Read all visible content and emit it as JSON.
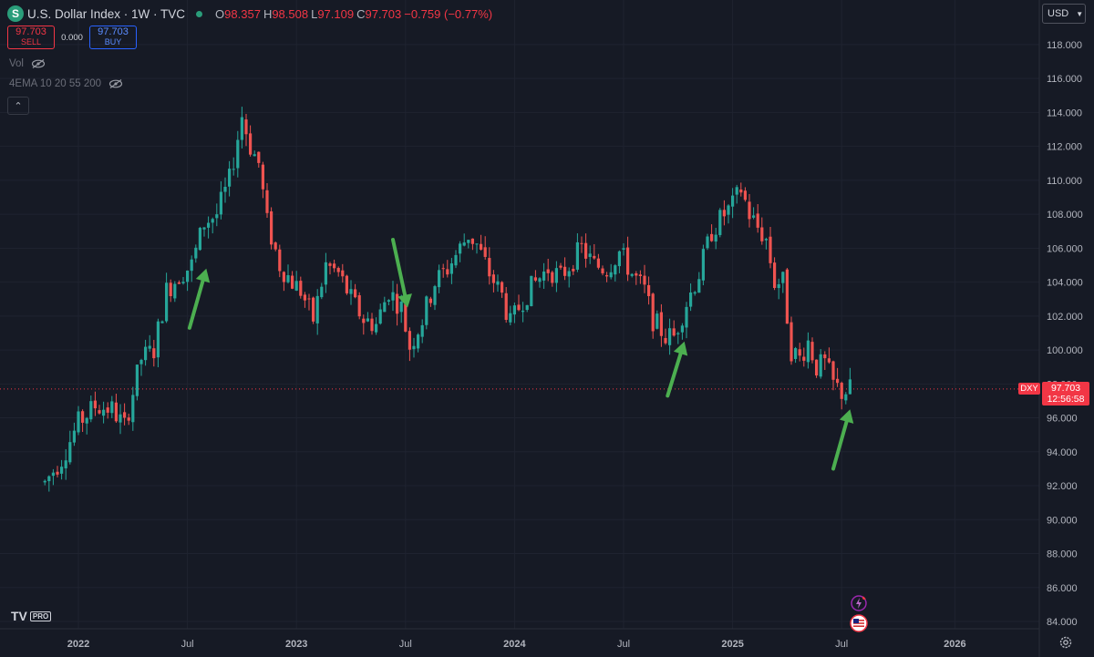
{
  "header": {
    "symbol_logo": "S",
    "title": "U.S. Dollar Index · 1W · TVC",
    "ohlc": [
      {
        "k": "O",
        "v": "98.357"
      },
      {
        "k": "H",
        "v": "98.508"
      },
      {
        "k": "L",
        "v": "97.109"
      },
      {
        "k": "C",
        "v": "97.703"
      },
      {
        "k": "",
        "v": "−0.759 (−0.77%)"
      }
    ]
  },
  "trade": {
    "sell_price": "97.703",
    "sell_label": "SELL",
    "spread": "0.000",
    "buy_price": "97.703",
    "buy_label": "BUY"
  },
  "indicators": [
    {
      "label": "Vol"
    },
    {
      "label": "4EMA 10 20 55 200"
    }
  ],
  "currency_button": "USD",
  "price_tag": {
    "symbol": "DXY",
    "price": "97.703",
    "countdown": "12:56:58"
  },
  "branding": {
    "logo": "TV",
    "badge": "PRO"
  },
  "icons": {
    "eye_off": "eye-off-icon",
    "settings": "gear-icon",
    "events": [
      "lightning-event-icon",
      "us-flag-event-icon"
    ],
    "collapse": "chevron-up-icon"
  },
  "colors": {
    "background": "#161a25",
    "up": "#26a69a",
    "down": "#ef5350",
    "arrow": "#4caf50",
    "last_price": "#f23645",
    "grid": "#1f2330"
  },
  "chart_data": {
    "type": "candlestick",
    "title": "U.S. Dollar Index · 1W · TVC",
    "xlabel": "",
    "ylabel": "",
    "ylim": [
      83,
      120
    ],
    "y_ticks": [
      "84.000",
      "86.000",
      "88.000",
      "90.000",
      "92.000",
      "94.000",
      "96.000",
      "98.000",
      "100.000",
      "102.000",
      "104.000",
      "106.000",
      "108.000",
      "110.000",
      "112.000",
      "114.000",
      "116.000",
      "118.000"
    ],
    "x_ticks": [
      "2022",
      "Jul",
      "2023",
      "Jul",
      "2024",
      "Jul",
      "2025",
      "Jul",
      "2026"
    ],
    "x_tick_weeks": [
      0,
      26,
      52,
      78,
      104,
      130,
      156,
      182,
      209
    ],
    "last_price": 97.703,
    "grid": true,
    "trend_close": [
      [
        -8,
        92.2
      ],
      [
        -4,
        93.6
      ],
      [
        0,
        95.7
      ],
      [
        4,
        96.7
      ],
      [
        8,
        96.5
      ],
      [
        11,
        95.5
      ],
      [
        15,
        99.5
      ],
      [
        18,
        100.0
      ],
      [
        21,
        103.5
      ],
      [
        24,
        104.4
      ],
      [
        27,
        105.0
      ],
      [
        30,
        107.5
      ],
      [
        33,
        108.0
      ],
      [
        36,
        110.0
      ],
      [
        39,
        113.8
      ],
      [
        41,
        112.0
      ],
      [
        43,
        111.0
      ],
      [
        45,
        107.5
      ],
      [
        48,
        105.0
      ],
      [
        51,
        104.0
      ],
      [
        53,
        103.5
      ],
      [
        56,
        101.8
      ],
      [
        59,
        105.0
      ],
      [
        62,
        104.5
      ],
      [
        65,
        103.0
      ],
      [
        68,
        101.8
      ],
      [
        71,
        101.5
      ],
      [
        74,
        103.5
      ],
      [
        77,
        102.5
      ],
      [
        79,
        100.2
      ],
      [
        82,
        101.8
      ],
      [
        85,
        104.0
      ],
      [
        88,
        104.8
      ],
      [
        91,
        106.0
      ],
      [
        93,
        106.8
      ],
      [
        95,
        106.2
      ],
      [
        98,
        104.5
      ],
      [
        101,
        103.2
      ],
      [
        103,
        101.5
      ],
      [
        106,
        103.0
      ],
      [
        109,
        104.0
      ],
      [
        112,
        104.8
      ],
      [
        115,
        104.3
      ],
      [
        117,
        105.0
      ],
      [
        120,
        106.0
      ],
      [
        123,
        105.0
      ],
      [
        126,
        104.8
      ],
      [
        129,
        105.8
      ],
      [
        132,
        104.5
      ],
      [
        135,
        103.5
      ],
      [
        137,
        101.8
      ],
      [
        140,
        100.8
      ],
      [
        142,
        100.8
      ],
      [
        145,
        102.8
      ],
      [
        148,
        104.5
      ],
      [
        151,
        107.0
      ],
      [
        154,
        108.0
      ],
      [
        156,
        108.5
      ],
      [
        158,
        109.5
      ],
      [
        160,
        108.0
      ],
      [
        162,
        107.2
      ],
      [
        164,
        106.5
      ],
      [
        166,
        104.0
      ],
      [
        168,
        104.0
      ],
      [
        170,
        100.0
      ],
      [
        172,
        99.5
      ],
      [
        174,
        100.5
      ],
      [
        176,
        99.0
      ],
      [
        178,
        99.2
      ],
      [
        180,
        98.0
      ],
      [
        182,
        97.5
      ],
      [
        184,
        97.7
      ]
    ],
    "arrows": [
      {
        "from": [
          26.5,
          101.3
        ],
        "to": [
          30.5,
          104.8
        ]
      },
      {
        "from": [
          75.0,
          106.5
        ],
        "to": [
          78.5,
          102.5
        ]
      },
      {
        "from": [
          140.5,
          97.3
        ],
        "to": [
          144.5,
          100.5
        ]
      },
      {
        "from": [
          180.0,
          93.0
        ],
        "to": [
          184.0,
          96.5
        ]
      }
    ]
  }
}
